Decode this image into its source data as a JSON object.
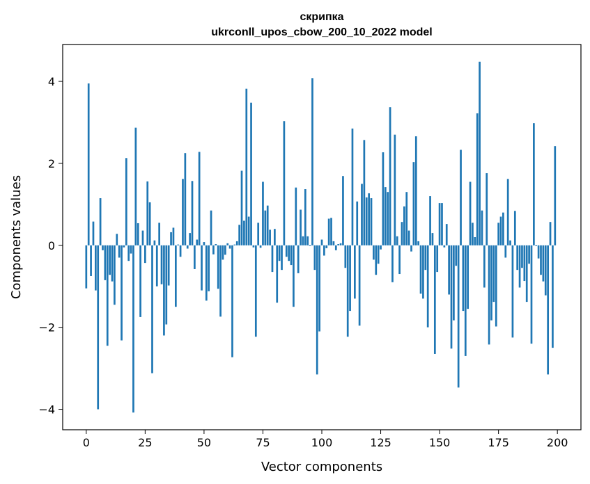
{
  "chart_data": {
    "type": "bar",
    "title": "скрипка",
    "subtitle": "ukrconll_upos_cbow_200_10_2022 model",
    "xlabel": "Vector components",
    "ylabel": "Components values",
    "xlim": [
      -10,
      210
    ],
    "ylim": [
      -4.5,
      4.9
    ],
    "xticks": [
      0,
      25,
      50,
      75,
      100,
      125,
      150,
      175,
      200
    ],
    "yticks": [
      -4,
      -2,
      0,
      2,
      4
    ],
    "grid": false,
    "bar_color": "#1f77b4",
    "x_start": 0,
    "values": [
      -1.05,
      3.95,
      -0.75,
      0.58,
      -1.1,
      -4.0,
      1.15,
      -0.12,
      -0.85,
      -2.45,
      -0.72,
      -0.88,
      -1.45,
      0.28,
      -0.3,
      -2.32,
      -0.05,
      2.13,
      -0.38,
      -0.2,
      -4.08,
      2.87,
      0.54,
      -1.75,
      0.36,
      -0.43,
      1.56,
      1.05,
      -3.12,
      0.12,
      -1.0,
      0.55,
      -0.95,
      -2.2,
      -1.93,
      -0.98,
      0.32,
      0.43,
      -1.5,
      0.02,
      -0.28,
      1.62,
      2.25,
      -0.08,
      0.3,
      1.57,
      -0.58,
      0.14,
      2.28,
      -1.1,
      0.08,
      -1.35,
      -1.12,
      0.85,
      -0.22,
      0.03,
      -1.06,
      -1.74,
      -0.35,
      -0.23,
      0.05,
      -0.08,
      -2.73,
      0.02,
      0.1,
      0.5,
      1.82,
      0.6,
      3.82,
      0.7,
      3.48,
      -0.05,
      -2.23,
      0.55,
      -0.06,
      1.55,
      0.85,
      0.97,
      0.38,
      -0.65,
      0.4,
      -1.4,
      -0.38,
      -0.6,
      3.03,
      -0.28,
      -0.38,
      -0.48,
      -1.5,
      1.41,
      -0.68,
      0.87,
      0.22,
      1.37,
      0.22,
      -0.02,
      4.08,
      -0.6,
      -3.15,
      -2.1,
      0.14,
      -0.25,
      -0.07,
      0.65,
      0.67,
      0.1,
      -0.12,
      0.03,
      0.05,
      1.69,
      -0.55,
      -2.23,
      -1.6,
      2.85,
      -1.3,
      1.07,
      -1.96,
      1.5,
      2.57,
      1.17,
      1.27,
      1.15,
      -0.35,
      -0.72,
      -0.45,
      -0.1,
      2.27,
      1.42,
      1.3,
      3.37,
      -0.9,
      2.7,
      0.22,
      -0.7,
      0.57,
      0.95,
      1.3,
      0.36,
      -0.15,
      2.03,
      2.66,
      0.1,
      -1.18,
      -1.3,
      -0.6,
      -2.0,
      1.2,
      0.3,
      -2.65,
      -0.65,
      1.03,
      1.03,
      -0.05,
      0.52,
      -1.2,
      -2.52,
      -1.83,
      -0.5,
      -3.47,
      2.33,
      -1.6,
      -2.7,
      -1.55,
      1.55,
      0.55,
      0.2,
      3.22,
      4.48,
      0.85,
      -1.03,
      1.76,
      -2.42,
      -1.83,
      -1.38,
      -1.98,
      0.55,
      0.7,
      0.8,
      -0.3,
      1.62,
      0.12,
      -2.25,
      0.84,
      -0.6,
      -1.03,
      -0.55,
      -0.87,
      -1.38,
      -0.45,
      -2.4,
      2.98,
      -0.02,
      -0.32,
      -0.72,
      -0.88,
      -1.22,
      -3.15,
      0.57,
      -2.5,
      2.42
    ]
  }
}
